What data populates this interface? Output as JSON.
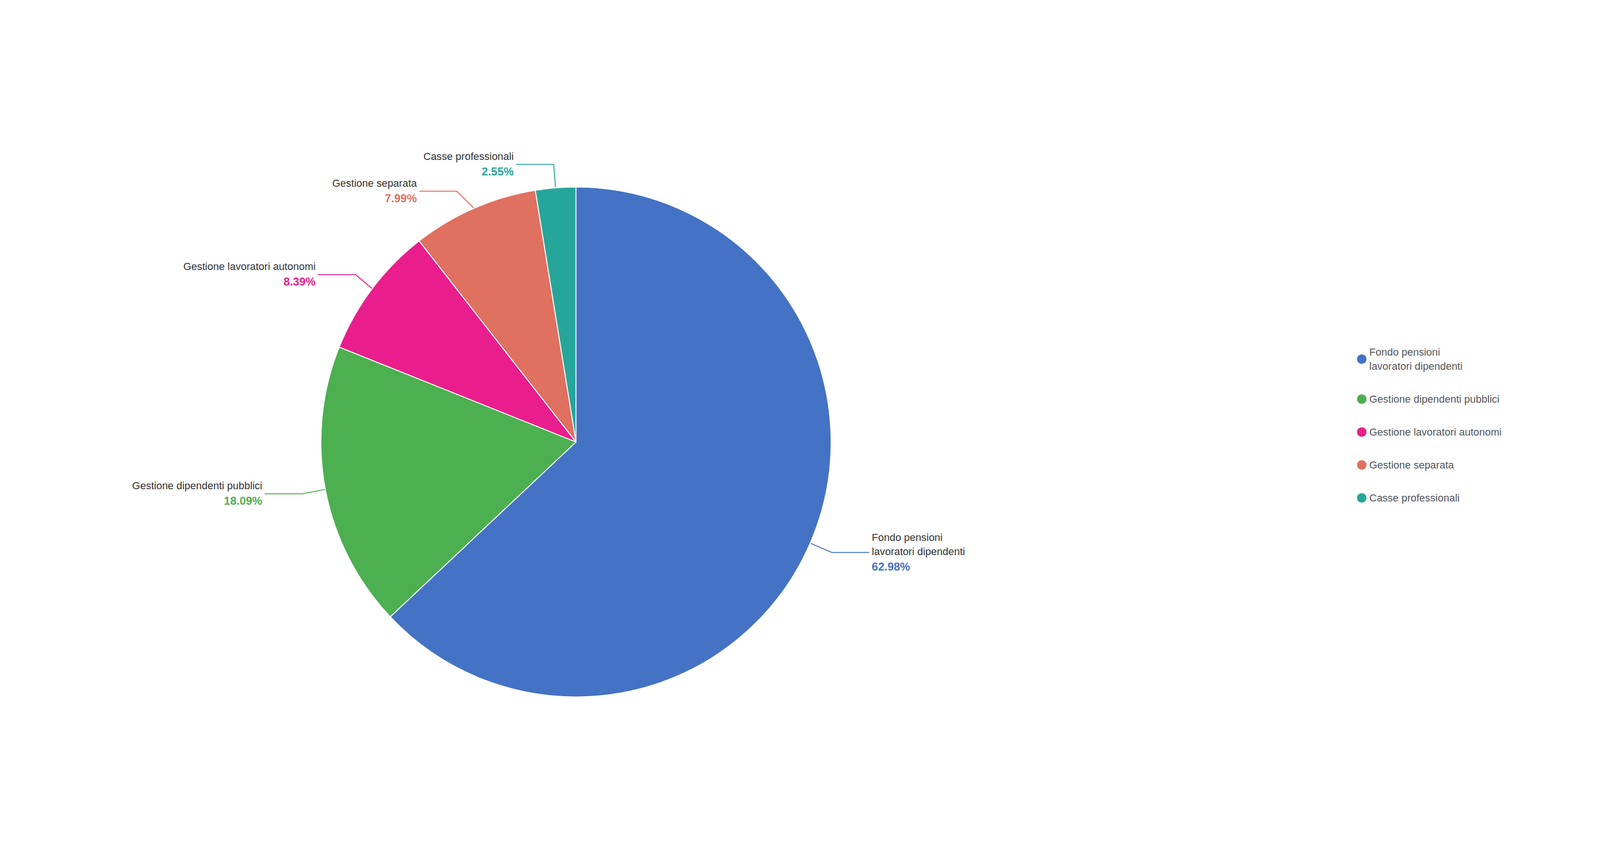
{
  "chart_data": {
    "type": "pie",
    "categories": [
      "Fondo pensioni\nlavoratori dipendenti",
      "Gestione dipendenti pubblici",
      "Gestione lavoratori autonomi",
      "Gestione separata",
      "Casse professionali"
    ],
    "values": [
      62.98,
      18.09,
      8.39,
      7.99,
      2.55
    ],
    "value_labels": [
      "62.98%",
      "18.09%",
      "8.39%",
      "7.99%",
      "2.55%"
    ],
    "colors": [
      "#4472C4",
      "#4CAF50",
      "#E91E8C",
      "#E07060",
      "#26A69A"
    ],
    "data_labels": true,
    "legend": "right"
  }
}
